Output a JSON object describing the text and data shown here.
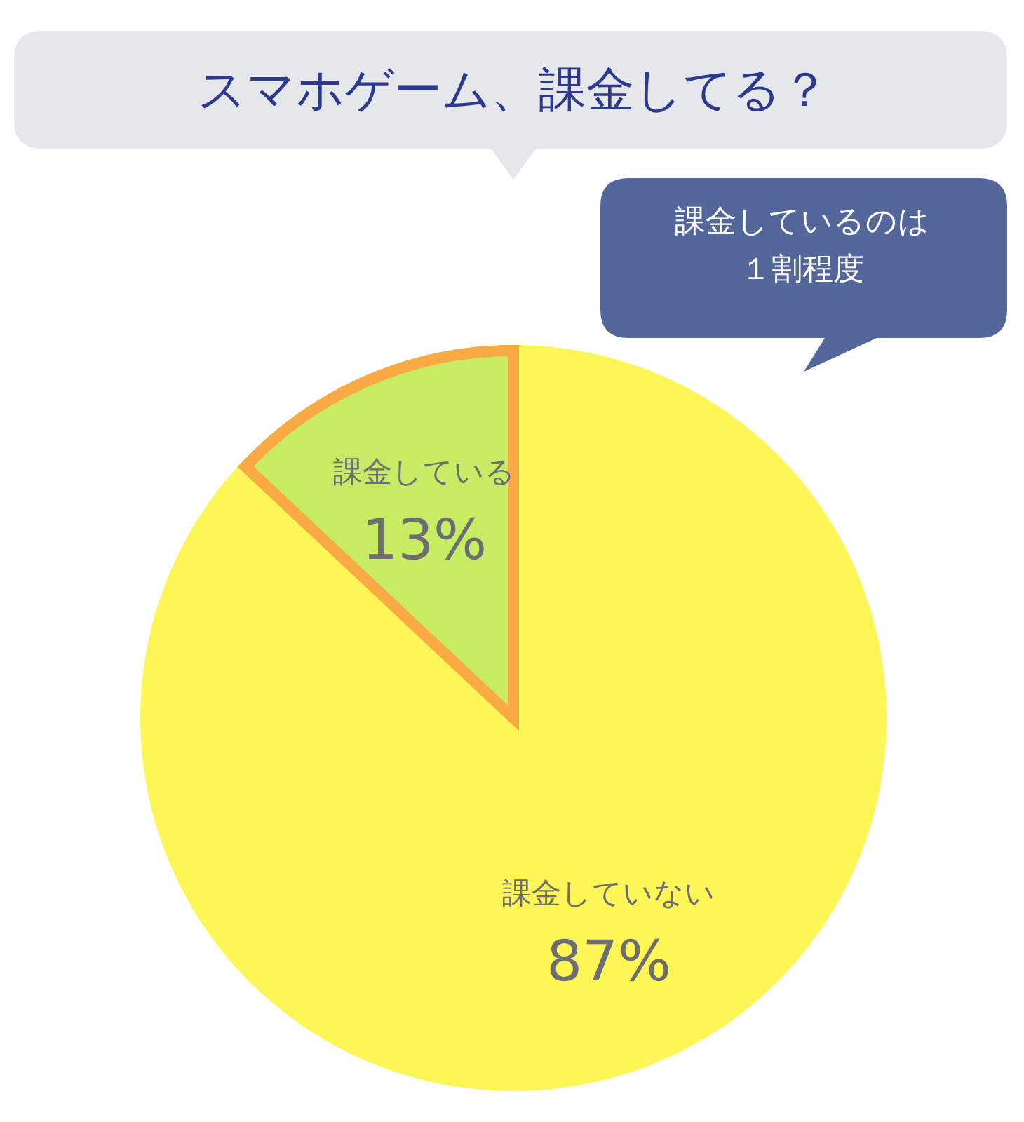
{
  "chart_data": {
    "type": "pie",
    "title": "スマホゲーム、課金してる？",
    "categories": [
      "課金している",
      "課金していない"
    ],
    "values": [
      13,
      87
    ],
    "colors": [
      "#c5ec62",
      "#fef557"
    ],
    "value_labels": [
      "13%",
      "87%"
    ],
    "annotations": [
      "課金しているのは１割程度"
    ]
  }
}
